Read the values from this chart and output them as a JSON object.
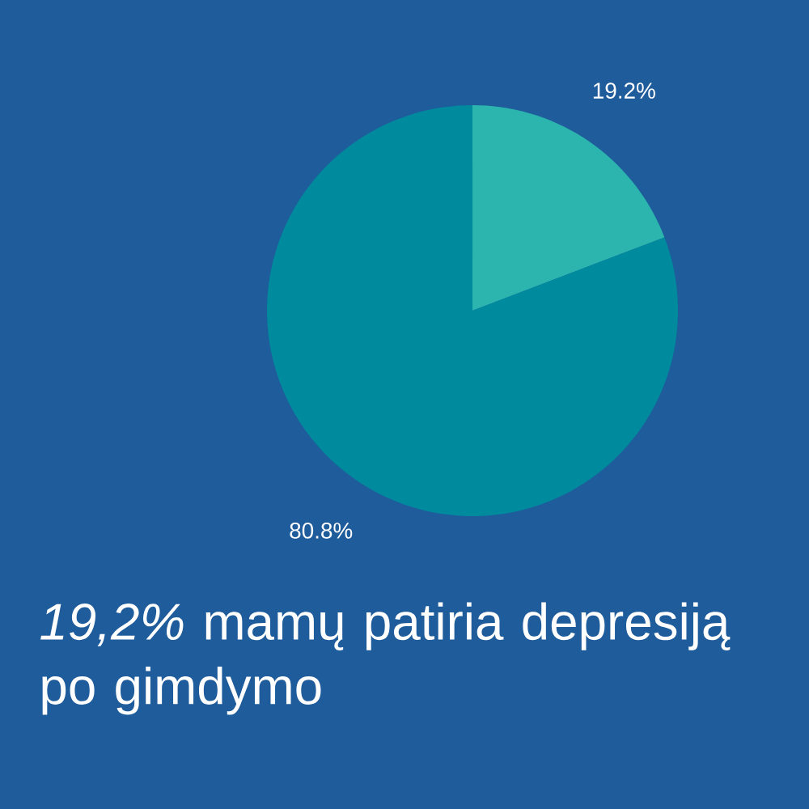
{
  "chart_data": {
    "type": "pie",
    "title": "*19,2%* mamų patiria depresiją po gimdymo",
    "categories": [
      null,
      null
    ],
    "values": [
      19.2,
      80.8
    ],
    "colors": [
      "#2bb5ae",
      "#008a9e"
    ],
    "value_labels": [
      "19.2%",
      "80.8%"
    ]
  }
}
